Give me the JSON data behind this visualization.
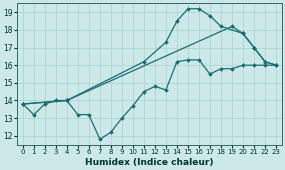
{
  "xlabel": "Humidex (Indice chaleur)",
  "bg_color": "#cce8e8",
  "grid_color": "#b0d4d4",
  "line_color": "#1a7070",
  "xlim": [
    -0.5,
    23.5
  ],
  "ylim": [
    11.5,
    19.5
  ],
  "yticks": [
    12,
    13,
    14,
    15,
    16,
    17,
    18,
    19
  ],
  "xticks": [
    0,
    1,
    2,
    3,
    4,
    5,
    6,
    7,
    8,
    9,
    10,
    11,
    12,
    13,
    14,
    15,
    16,
    17,
    18,
    19,
    20,
    21,
    22,
    23
  ],
  "series": [
    {
      "x": [
        0,
        1,
        2,
        3,
        4,
        5,
        6,
        7,
        8,
        9,
        10,
        11,
        12,
        13,
        14,
        15,
        16,
        17,
        18,
        19,
        20,
        21,
        22,
        23
      ],
      "y": [
        13.8,
        13.2,
        13.8,
        14.0,
        14.0,
        13.2,
        13.2,
        11.8,
        12.2,
        13.0,
        13.7,
        14.5,
        14.8,
        14.6,
        16.2,
        16.3,
        16.3,
        15.5,
        15.8,
        15.8,
        16.0,
        16.0,
        16.0,
        16.0
      ]
    },
    {
      "x": [
        0,
        4,
        11,
        13,
        14,
        15,
        16,
        17,
        18,
        20,
        21,
        22,
        23
      ],
      "y": [
        13.8,
        14.0,
        16.2,
        17.3,
        18.5,
        19.2,
        19.2,
        18.8,
        18.2,
        17.8,
        17.0,
        16.2,
        16.0
      ]
    },
    {
      "x": [
        0,
        4,
        19,
        20,
        21,
        22,
        23
      ],
      "y": [
        13.8,
        14.0,
        18.2,
        17.8,
        17.0,
        16.2,
        16.0
      ]
    }
  ]
}
